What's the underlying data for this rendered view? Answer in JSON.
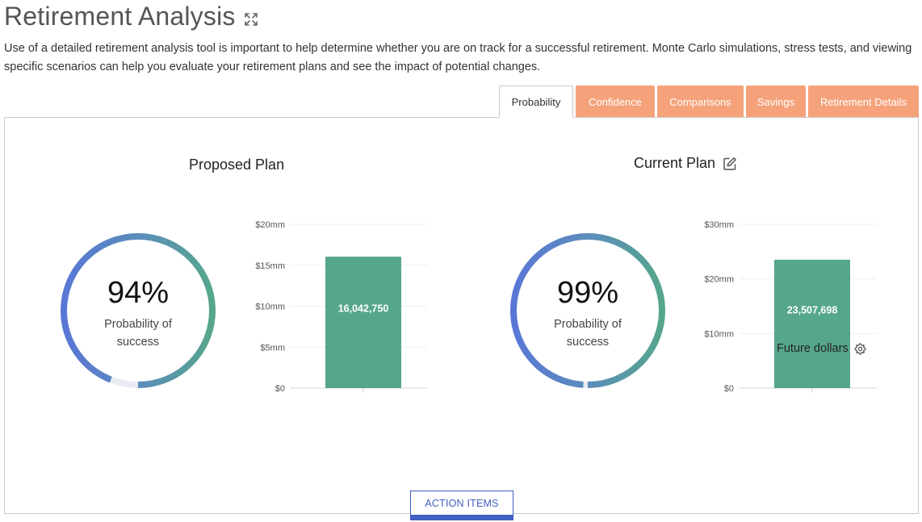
{
  "page": {
    "title": "Retirement Analysis",
    "description": "Use of a detailed retirement analysis tool is important to help determine whether you are on track for a successful retirement. Monte Carlo simulations, stress tests, and viewing specific scenarios can help you evaluate your retirement plans and see the impact of potential changes."
  },
  "tabs": [
    {
      "label": "Probability",
      "active": true
    },
    {
      "label": "Confidence",
      "active": false
    },
    {
      "label": "Comparisons",
      "active": false
    },
    {
      "label": "Savings",
      "active": false
    },
    {
      "label": "Retirement Details",
      "active": false
    }
  ],
  "proposed": {
    "title": "Proposed Plan",
    "probability_label": "94%",
    "probability_caption": "Probability of success",
    "bar_value_label": "16,042,750"
  },
  "current": {
    "title": "Current Plan",
    "probability_label": "99%",
    "probability_caption": "Probability of success",
    "bar_value_label": "23,507,698"
  },
  "chart_data": [
    {
      "type": "bar",
      "title": "",
      "categories": [
        ""
      ],
      "values": [
        16042750
      ],
      "ylim": [
        0,
        20000000
      ],
      "yticks": [
        "$0",
        "$5mm",
        "$10mm",
        "$15mm",
        "$20mm"
      ],
      "ytick_values": [
        0,
        5000000,
        10000000,
        15000000,
        20000000
      ],
      "grid": true,
      "color": "#56a68c"
    },
    {
      "type": "bar",
      "title": "",
      "categories": [
        ""
      ],
      "values": [
        23507698
      ],
      "ylim": [
        0,
        30000000
      ],
      "yticks": [
        "$0",
        "$10mm",
        "$20mm",
        "$30mm"
      ],
      "ytick_values": [
        0,
        10000000,
        20000000,
        30000000
      ],
      "grid": true,
      "color": "#56a68c"
    }
  ],
  "gauges": [
    {
      "name": "proposed",
      "probability": 0.94
    },
    {
      "name": "current",
      "probability": 0.99
    }
  ],
  "footer": {
    "future_dollars_label": "Future dollars",
    "action_items_label": "ACTION ITEMS"
  },
  "colors": {
    "tab_inactive": "#f5a27a",
    "bar": "#56a68c",
    "gauge_blue": "#5a77d6",
    "gauge_green": "#56a68c",
    "gauge_track": "#e8ecf2",
    "action_blue": "#3f5fc1"
  },
  "icons": {
    "expand": "expand-arrows-icon",
    "edit": "edit-pencil-icon",
    "settings": "gear-icon"
  }
}
